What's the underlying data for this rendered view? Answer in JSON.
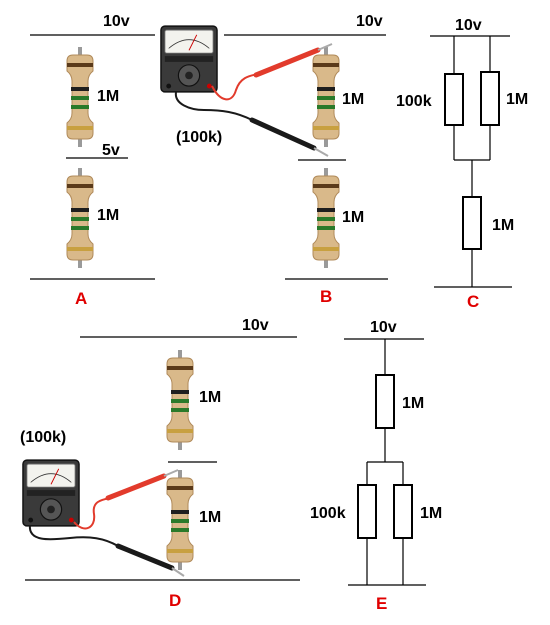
{
  "panels": {
    "A": {
      "label": "A",
      "top_voltage": "10v",
      "mid_voltage": "5v",
      "top_resistor": "1M",
      "bottom_resistor": "1M"
    },
    "B": {
      "label": "B",
      "top_voltage": "10v",
      "meter_resistance": "(100k)",
      "top_resistor": "1M",
      "bottom_resistor": "1M"
    },
    "C": {
      "label": "C",
      "top_voltage": "10v",
      "parallel_left": "100k",
      "parallel_right": "1M",
      "series_bottom": "1M"
    },
    "D": {
      "label": "D",
      "top_voltage": "10v",
      "meter_resistance": "(100k)",
      "top_resistor": "1M",
      "bottom_resistor": "1M"
    },
    "E": {
      "label": "E",
      "top_voltage": "10v",
      "series_top": "1M",
      "parallel_left": "100k",
      "parallel_right": "1M"
    }
  },
  "colors": {
    "label_red": "#e00000",
    "probe_red": "#e23b2c",
    "probe_black": "#1a1a1a",
    "resistor_body": "#d9b98a",
    "lead_gray": "#9a9a9a"
  },
  "icons": {
    "meter": "analog-multimeter-icon",
    "resistor": "resistor-photo-icon"
  }
}
